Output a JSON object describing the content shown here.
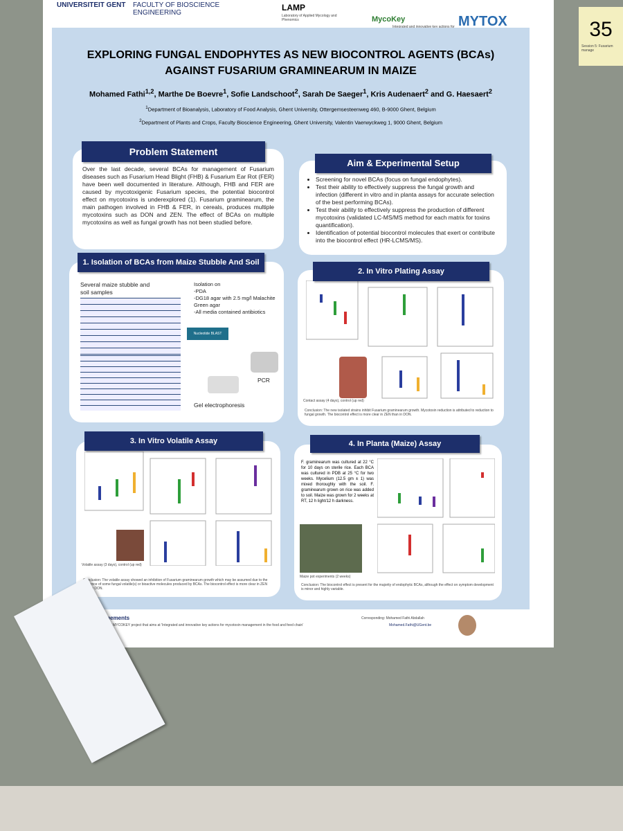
{
  "board_card": {
    "number": "35",
    "caption": "Session 5: Fusarium manage"
  },
  "header": {
    "logos": [
      "UNIVERSITEIT GENT",
      "FACULTY OF BIOSCIENCE ENGINEERING",
      "LAMP",
      "Laboratory of Applied Mycology and Phenomics",
      "MycoKey",
      "Integrated and innovative key actions for mycotoxin management in the food and feed chain",
      "MYTOX"
    ]
  },
  "title": [
    "EXPLORING FUNGAL ENDOPHYTES AS NEW BIOCONTROL AGENTS (BCAs)",
    "AGAINST FUSARIUM GRAMINEARUM IN MAIZE"
  ],
  "authors": [
    {
      "name": "Mohamed Fathi",
      "sup": "1,2"
    },
    {
      "name": ", Marthe De Boevre",
      "sup": "1"
    },
    {
      "name": ", Sofie Landschoot",
      "sup": "2"
    },
    {
      "name": ", Sarah De Saeger",
      "sup": "1"
    },
    {
      "name": ", Kris Audenaert",
      "sup": "2"
    },
    {
      "name": " and G. Haesaert",
      "sup": "2"
    }
  ],
  "affiliations": [
    {
      "sup": "1",
      "text": "Department of Bioanalysis, Laboratory of Food Analysis, Ghent University, Ottergemsesteenweg 460, B-9000 Ghent, Belgium"
    },
    {
      "sup": "2",
      "text": "Department of Plants and Crops, Faculty Bioscience Engineering, Ghent University, Valentin Vaerwyckweg 1, 9000 Ghent, Belgium"
    }
  ],
  "problem": {
    "heading": "Problem Statement",
    "text": "Over the last decade, several BCAs for management of Fusarium diseases such as Fusarium Head Blight (FHB) & Fusarium Ear Rot (FER) have been well documented in literature. Although, FHB and FER are caused by mycotoxigenic Fusarium species, the potential biocontrol effect on mycotoxins is underexplored (1). Fusarium graminearum, the main pathogen involved in FHB & FER, in cereals, produces multiple mycotoxins such as DON and ZEN. The effect of BCAs on multiple mycotoxins as well as fungal growth has not been studied before."
  },
  "aim": {
    "heading": "Aim & Experimental Setup",
    "bullets": [
      "Screening for novel BCAs (focus on fungal endophytes).",
      "Test their ability to effectively suppress the fungal growth and infection (different in vitro and in planta assays for accurate selection of the best performing BCAs).",
      "Test their ability to effectively suppress the production of different mycotoxins (validated LC-MS/MS method for each matrix for toxins quantification).",
      "Identification of potential biocontrol molecules that exert or contribute into the biocontrol effect (HR-LCMS/MS)."
    ]
  },
  "section1": {
    "heading": "1. Isolation of BCAs from Maize Stubble And Soil",
    "samples": "Several maize stubble and soil samples",
    "isolation": [
      "Isolation on",
      "-PDA",
      "-DG18 agar with 2.5 mg/l Malachite Green agar",
      "-All media contained antibiotics"
    ],
    "pcr": "PCR",
    "gel": "Gel electrophoresis",
    "blast": "Nucleotide BLAST"
  },
  "section2": {
    "heading": "2. In Vitro Plating Assay",
    "contact": "Contact assay (4 days), control (up red)",
    "conclusion": "Conclusion: The new isolated strains inhibit Fusarium graminearum growth. Mycotoxin reduction is attributed to reduction to fungal growth. The biocontrol effect is more clear in ZEN than in DON."
  },
  "section3": {
    "heading": "3. In Vitro Volatile Assay",
    "volatile": "Volatile assay (3 days), control (up red)",
    "conclusion": "Conclusion: The volatile assay showed an inhibition of Fusarium graminearum growth which may be assumed due to the presence of some fungal volatile(s) or bioactive molecules produced by BCAs. The biocontrol effect is more clear in ZEN than in DON."
  },
  "section4": {
    "heading": "4. In Planta (Maize) Assay",
    "text": "F. graminearum was cultured at 22 °C for 10 days on sterile rice. Each BCA was cultured in PDB at 25 °C for two weeks. Mycelium (12.5 gm ± 1) was mixed thoroughly with the soil. F. graminearum grown on rice was added to soil. Maize was grown for 2 weeks at RT, 12 h light/12 h darkness.",
    "photo": "Maize pot experiments (2 weeks)",
    "conclusion": "Conclusion: The biocontrol effect is present for the majority of endophytic BCAs, although the effect on symptom development is minor and highly variable."
  },
  "footer": {
    "ack": "Acknowledgements",
    "ack_text": "The project is a part of MYCOKEY project that aims at 'Integrated and innovative key actions for mycotoxin management in the food and feed chain'",
    "contact": "Corresponding: Mohamed Fathi Abdallah",
    "email": "Mohamed.Fathi@UGent.be"
  }
}
